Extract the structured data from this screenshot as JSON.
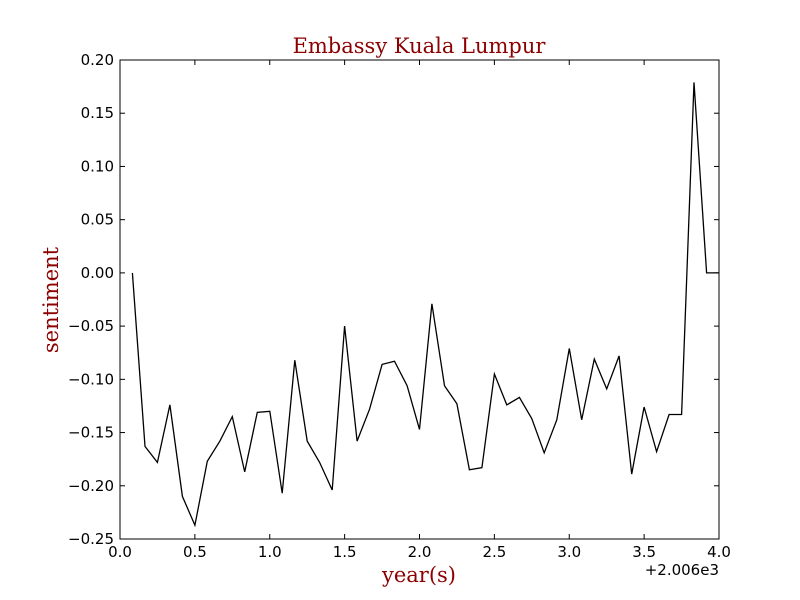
{
  "chart_data": {
    "type": "line",
    "title": "Embassy Kuala Lumpur",
    "xlabel": "year(s)",
    "ylabel": "sentiment",
    "x_offset_label": "+2.006e3",
    "xlim": [
      0.0,
      4.0
    ],
    "ylim": [
      -0.25,
      0.2
    ],
    "x_ticks": [
      0.0,
      0.5,
      1.0,
      1.5,
      2.0,
      2.5,
      3.0,
      3.5,
      4.0
    ],
    "x_tick_labels": [
      "0.0",
      "0.5",
      "1.0",
      "1.5",
      "2.0",
      "2.5",
      "3.0",
      "3.5",
      "4.0"
    ],
    "y_ticks": [
      -0.25,
      -0.2,
      -0.15,
      -0.1,
      -0.05,
      0.0,
      0.05,
      0.1,
      0.15,
      0.2
    ],
    "y_tick_labels": [
      "−0.25",
      "−0.20",
      "−0.15",
      "−0.10",
      "−0.05",
      "0.00",
      "0.05",
      "0.10",
      "0.15",
      "0.20"
    ],
    "grid": false,
    "line_color": "#000000",
    "title_color": "#8b0000",
    "series": [
      {
        "x": [
          0.083,
          0.167,
          0.25,
          0.333,
          0.417,
          0.5,
          0.583,
          0.667,
          0.75,
          0.833,
          0.917,
          1.0,
          1.083,
          1.167,
          1.25,
          1.333,
          1.417,
          1.5,
          1.583,
          1.667,
          1.75,
          1.833,
          1.917,
          2.0,
          2.083,
          2.167,
          2.25,
          2.333,
          2.417,
          2.5,
          2.583,
          2.667,
          2.75,
          2.833,
          2.917,
          3.0,
          3.083,
          3.167,
          3.25,
          3.333,
          3.417,
          3.5,
          3.583,
          3.667,
          3.75,
          3.833,
          3.917,
          4.0
        ],
        "values": [
          0.0,
          -0.163,
          -0.178,
          -0.124,
          -0.21,
          -0.237,
          -0.177,
          -0.158,
          -0.135,
          -0.187,
          -0.131,
          -0.13,
          -0.207,
          -0.082,
          -0.158,
          -0.178,
          -0.204,
          -0.05,
          -0.158,
          -0.128,
          -0.086,
          -0.083,
          -0.106,
          -0.147,
          -0.029,
          -0.106,
          -0.123,
          -0.185,
          -0.183,
          -0.095,
          -0.124,
          -0.117,
          -0.137,
          -0.169,
          -0.138,
          -0.071,
          -0.138,
          -0.081,
          -0.109,
          -0.078,
          -0.189,
          -0.126,
          -0.168,
          -0.133,
          -0.133,
          0.179,
          0.0,
          0.0
        ]
      }
    ]
  }
}
